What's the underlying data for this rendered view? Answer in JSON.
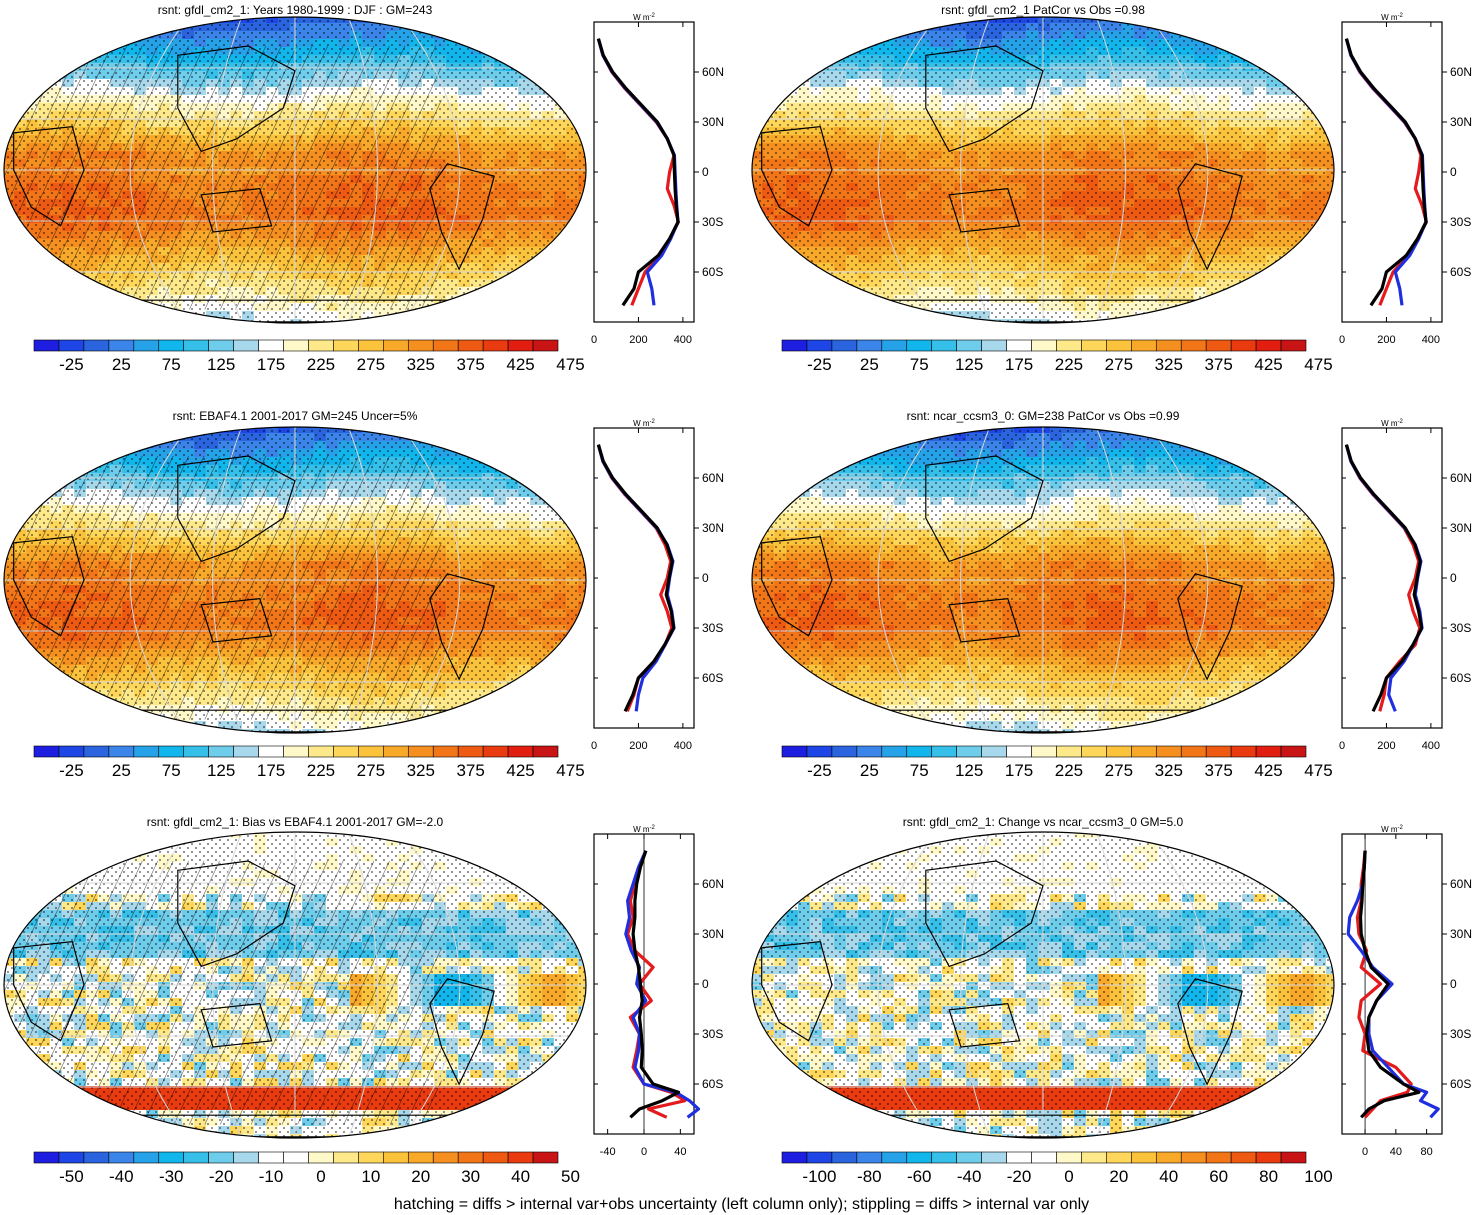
{
  "footnote": "hatching = diffs > internal var+obs uncertainty (left column only); stippling = diffs > internal var only",
  "profile_unit": "W m",
  "profile_unit_sup": "-2",
  "lat_ticks": [
    "60N",
    "30N",
    "0",
    "30S",
    "60S"
  ],
  "colors": {
    "abs_scale": [
      "#1e1ee0",
      "#1e46e6",
      "#2a64de",
      "#3a84ea",
      "#25a2e8",
      "#10b6ec",
      "#36bfe8",
      "#6fcdec",
      "#a8d8ec",
      "#ffffff",
      "#fff8c8",
      "#fde98a",
      "#fdd65a",
      "#fbc33c",
      "#f8a92a",
      "#f59020",
      "#f27618",
      "#ee5a12",
      "#ea3a10",
      "#e21e10",
      "#c81414"
    ],
    "diff_scale": [
      "#1e1ee0",
      "#1e46e6",
      "#2a64de",
      "#3a84ea",
      "#25a2e8",
      "#10b6ec",
      "#36bfe8",
      "#6fcdec",
      "#a8d8ec",
      "#ffffff",
      "#ffffff",
      "#fff8c8",
      "#fde98a",
      "#fdd65a",
      "#fbc33c",
      "#f8a92a",
      "#f59020",
      "#f27618",
      "#ee5a12",
      "#ea3a10",
      "#c81414"
    ],
    "line_model": "#e41a1c",
    "line_obs": "#1f2fe0",
    "line_ref": "#000000"
  },
  "panels": [
    {
      "id": "p1",
      "title": "rsnt: gfdl_cm2_1: Years 1980-1999 : DJF : GM=243",
      "kind": "abs",
      "hatching": true,
      "colorbar_labels": [
        "-25",
        "25",
        "75",
        "125",
        "175",
        "225",
        "275",
        "325",
        "375",
        "425",
        "475"
      ],
      "profile_xticks": [
        "0",
        "200",
        "400"
      ],
      "profile_xlim": [
        0,
        450
      ],
      "profile_series": {
        "lat": [
          80,
          70,
          60,
          50,
          40,
          30,
          20,
          10,
          0,
          -10,
          -20,
          -30,
          -40,
          -50,
          -60,
          -70,
          -80
        ],
        "red": [
          20,
          40,
          80,
          140,
          210,
          280,
          330,
          360,
          340,
          330,
          360,
          380,
          340,
          300,
          230,
          200,
          170
        ],
        "blue": [
          20,
          40,
          82,
          142,
          212,
          282,
          330,
          362,
          365,
          368,
          372,
          378,
          345,
          305,
          240,
          260,
          270
        ],
        "black": [
          20,
          42,
          84,
          145,
          215,
          285,
          330,
          360,
          362,
          365,
          370,
          378,
          340,
          290,
          200,
          180,
          130
        ]
      }
    },
    {
      "id": "p2",
      "title": "rsnt: gfdl_cm2_1 PatCor vs Obs =0.98",
      "kind": "abs",
      "hatching": false,
      "colorbar_labels": [
        "-25",
        "25",
        "75",
        "125",
        "175",
        "225",
        "275",
        "325",
        "375",
        "425",
        "475"
      ],
      "profile_xticks": [
        "0",
        "200",
        "400"
      ],
      "profile_xlim": [
        0,
        450
      ],
      "profile_series": {
        "lat": [
          80,
          70,
          60,
          50,
          40,
          30,
          20,
          10,
          0,
          -10,
          -20,
          -30,
          -40,
          -50,
          -60,
          -70,
          -80
        ],
        "red": [
          20,
          40,
          80,
          140,
          210,
          280,
          330,
          355,
          345,
          330,
          360,
          380,
          340,
          300,
          230,
          200,
          170
        ],
        "blue": [
          20,
          40,
          82,
          142,
          212,
          282,
          330,
          362,
          365,
          368,
          372,
          378,
          345,
          305,
          240,
          260,
          270
        ],
        "black": [
          20,
          42,
          84,
          145,
          215,
          285,
          330,
          360,
          362,
          365,
          370,
          378,
          340,
          290,
          200,
          180,
          130
        ]
      }
    },
    {
      "id": "p3",
      "title": "rsnt: EBAF4.1 2001-2017 GM=245 Uncer=5%",
      "kind": "abs",
      "hatching": true,
      "colorbar_labels": [
        "-25",
        "25",
        "75",
        "125",
        "175",
        "225",
        "275",
        "325",
        "375",
        "425",
        "475"
      ],
      "profile_xticks": [
        "0",
        "200",
        "400"
      ],
      "profile_xlim": [
        0,
        450
      ],
      "profile_series": {
        "lat": [
          80,
          70,
          60,
          50,
          40,
          30,
          20,
          10,
          0,
          -10,
          -20,
          -30,
          -40,
          -50,
          -60,
          -70,
          -80
        ],
        "red": [
          20,
          40,
          80,
          140,
          210,
          280,
          320,
          345,
          330,
          300,
          330,
          350,
          320,
          270,
          200,
          180,
          150
        ],
        "blue": [
          20,
          40,
          82,
          142,
          212,
          282,
          330,
          355,
          340,
          330,
          350,
          360,
          320,
          280,
          220,
          200,
          190
        ],
        "black": [
          20,
          42,
          84,
          145,
          215,
          285,
          328,
          352,
          338,
          325,
          348,
          358,
          318,
          270,
          200,
          175,
          140
        ]
      }
    },
    {
      "id": "p4",
      "title": "rsnt: ncar_ccsm3_0: GM=238 PatCor vs Obs =0.99",
      "kind": "abs",
      "hatching": false,
      "colorbar_labels": [
        "-25",
        "25",
        "75",
        "125",
        "175",
        "225",
        "275",
        "325",
        "375",
        "425",
        "475"
      ],
      "profile_xticks": [
        "0",
        "200",
        "400"
      ],
      "profile_xlim": [
        0,
        450
      ],
      "profile_series": {
        "lat": [
          80,
          70,
          60,
          50,
          40,
          30,
          20,
          10,
          0,
          -10,
          -20,
          -30,
          -40,
          -50,
          -60,
          -70,
          -80
        ],
        "red": [
          20,
          40,
          80,
          140,
          210,
          280,
          320,
          345,
          330,
          300,
          320,
          350,
          330,
          260,
          200,
          190,
          170
        ],
        "blue": [
          20,
          40,
          82,
          142,
          212,
          282,
          330,
          355,
          340,
          330,
          350,
          360,
          320,
          280,
          220,
          210,
          240
        ],
        "black": [
          20,
          42,
          84,
          145,
          215,
          285,
          328,
          352,
          338,
          325,
          345,
          358,
          320,
          270,
          200,
          175,
          140
        ]
      }
    },
    {
      "id": "p5",
      "title": "rsnt: gfdl_cm2_1: Bias vs EBAF4.1 2001-2017 GM=-2.0",
      "kind": "diff",
      "hatching": true,
      "colorbar_labels": [
        "-50",
        "-40",
        "-30",
        "-20",
        "-10",
        "0",
        "10",
        "20",
        "30",
        "40",
        "50"
      ],
      "profile_xticks": [
        "-40",
        "0",
        "40"
      ],
      "profile_xlim": [
        -55,
        55
      ],
      "profile_series": {
        "lat": [
          80,
          70,
          60,
          50,
          40,
          30,
          20,
          10,
          0,
          -10,
          -20,
          -30,
          -40,
          -50,
          -60,
          -65,
          -70,
          -75,
          -80
        ],
        "red": [
          2,
          -5,
          -10,
          -15,
          -12,
          -18,
          -10,
          10,
          -5,
          8,
          -15,
          -5,
          -8,
          -12,
          0,
          30,
          45,
          5,
          25
        ],
        "blue": [
          2,
          -6,
          -12,
          -18,
          -16,
          -20,
          -14,
          -5,
          -8,
          2,
          -12,
          -5,
          -6,
          -10,
          0,
          35,
          50,
          60,
          48
        ],
        "black": [
          2,
          -4,
          -8,
          -10,
          -10,
          -12,
          -10,
          -6,
          -4,
          -2,
          -5,
          -3,
          -2,
          -3,
          10,
          38,
          20,
          -5,
          -15
        ]
      }
    },
    {
      "id": "p6",
      "title": "rsnt: gfdl_cm2_1: Change vs ncar_ccsm3_0 GM=5.0",
      "kind": "diff100",
      "hatching": false,
      "colorbar_labels": [
        "-100",
        "-80",
        "-60",
        "-40",
        "-20",
        "0",
        "20",
        "40",
        "60",
        "80",
        "100"
      ],
      "profile_xticks": [
        "0",
        "40",
        "80"
      ],
      "profile_xlim": [
        -30,
        100
      ],
      "profile_series": {
        "lat": [
          80,
          70,
          60,
          50,
          40,
          30,
          20,
          10,
          0,
          -10,
          -20,
          -30,
          -40,
          -50,
          -60,
          -65,
          -70,
          -75,
          -80
        ],
        "red": [
          0,
          -2,
          -5,
          -5,
          -10,
          -8,
          2,
          -5,
          20,
          -5,
          -8,
          0,
          -3,
          40,
          60,
          55,
          20,
          10,
          0
        ],
        "blue": [
          0,
          -1,
          -3,
          -10,
          -20,
          -22,
          -5,
          10,
          35,
          15,
          5,
          5,
          10,
          30,
          50,
          80,
          72,
          95,
          85
        ],
        "black": [
          0,
          -1,
          -3,
          -4,
          -6,
          -5,
          0,
          8,
          30,
          15,
          5,
          2,
          5,
          20,
          50,
          70,
          25,
          5,
          -5
        ]
      }
    }
  ]
}
